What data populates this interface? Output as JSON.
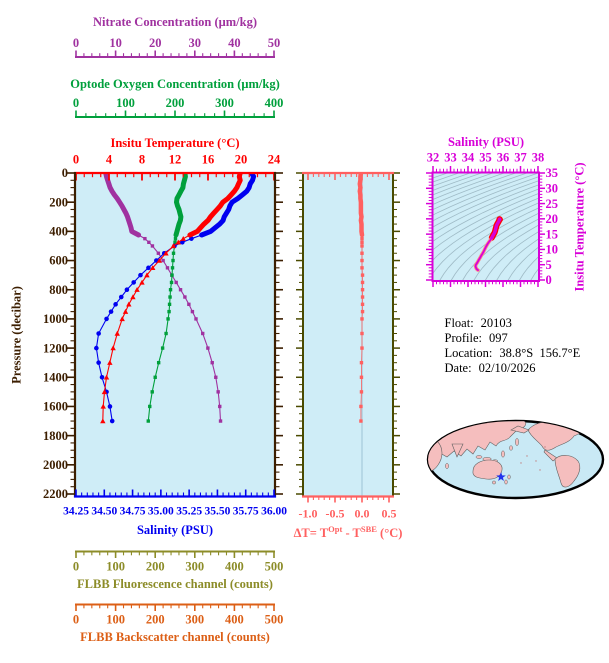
{
  "colors": {
    "nitrate": "#A032A0",
    "oxygen": "#00A03C",
    "temperature": "#FF0000",
    "salinity": "#0000F0",
    "pressure_axis": "#3C1E00",
    "fluorescence": "#8C8C28",
    "backscatter": "#DC5F16",
    "delta_t": "#FF6060",
    "mid_panel_axis": "#4A4A00",
    "ts_magenta": "#D800D8",
    "plot_background": "#CFEDF7",
    "zero_gridline": "#A5CBDC",
    "isopycnal_contour": "#8FAAB6",
    "map_ocean": "#C9E9F5",
    "map_land": "#F5BEBE",
    "map_outline": "#000000",
    "float_marker": "#2233EE"
  },
  "titles": {
    "nitrate": "Nitrate Concentration (μm/kg)",
    "oxygen": "Optode Oxygen Concentration (μm/kg)",
    "temperature": "Insitu Temperature (°C)",
    "pressure": "Pressure (decibar)",
    "salinity": "Salinity (PSU)",
    "fluorescence": "FLBB Fluorescence channel (counts)",
    "backscatter": "FLBB Backscatter channel (counts)",
    "ts_salinity": "Salinity (PSU)",
    "ts_temperature": "Insitu Temperature (°C)",
    "delta_t_parts": {
      "p1": "ΔT= T",
      "sup1": "Opt",
      "p2": " - T",
      "sup2": "SBE",
      "p3": " (°C)"
    }
  },
  "info": {
    "float_label": "Float:",
    "float_value": "20103",
    "profile_label": "Profile:",
    "profile_value": "097",
    "location_label": "Location:",
    "location_value": "38.8°S  156.7°E",
    "date_label": "Date:",
    "date_value": "02/10/2026"
  },
  "map": {
    "marker": {
      "symbol": "star",
      "color": "#2233EE",
      "latitude": "38.8°S",
      "longitude": "156.7°E"
    }
  },
  "chart_data": [
    {
      "type": "line",
      "title": "Float profile: temperature, salinity, oxygen, nitrate vs pressure",
      "y_axis": {
        "label": "Pressure (decibar)",
        "range": [
          0,
          2200
        ],
        "minor_step": 50,
        "major_ticks": [
          0,
          200,
          400,
          600,
          800,
          1000,
          1200,
          1400,
          1600,
          1800,
          2000,
          2200
        ],
        "tick_labels": [
          "0",
          "200",
          "400",
          "600",
          "800",
          "1000",
          "1200",
          "1400",
          "1600",
          "1800",
          "2000",
          "2200"
        ]
      },
      "x_axes": [
        {
          "id": "temperature",
          "label": "Insitu Temperature (°C)",
          "range": [
            0,
            24
          ],
          "minor_step": 1,
          "major_ticks": [
            0,
            4,
            8,
            12,
            16,
            20,
            24
          ],
          "tick_labels": [
            "0",
            "4",
            "8",
            "12",
            "16",
            "20",
            "24"
          ],
          "color": "#FF0000"
        },
        {
          "id": "salinity",
          "label": "Salinity (PSU)",
          "range": [
            34.25,
            36.0
          ],
          "minor_step": 0.05,
          "major_ticks": [
            34.25,
            34.5,
            34.75,
            35.0,
            35.25,
            35.5,
            35.75,
            36.0
          ],
          "tick_labels": [
            "34.25",
            "34.50",
            "34.75",
            "35.00",
            "35.25",
            "35.50",
            "35.75",
            "36.00"
          ],
          "color": "#0000F0"
        },
        {
          "id": "oxygen",
          "label": "Optode Oxygen Concentration (μm/kg)",
          "range": [
            0,
            400
          ],
          "minor_step": 20,
          "major_ticks": [
            0,
            100,
            200,
            300,
            400
          ],
          "tick_labels": [
            "0",
            "100",
            "200",
            "300",
            "400"
          ],
          "color": "#00A03C"
        },
        {
          "id": "nitrate",
          "label": "Nitrate Concentration (μm/kg)",
          "range": [
            0,
            50
          ],
          "minor_step": 2,
          "major_ticks": [
            0,
            10,
            20,
            30,
            40,
            50
          ],
          "tick_labels": [
            "0",
            "10",
            "20",
            "30",
            "40",
            "50"
          ],
          "color": "#A032A0"
        },
        {
          "id": "fluorescence",
          "label": "FLBB Fluorescence channel (counts)",
          "range": [
            0,
            500
          ],
          "minor_step": 20,
          "major_ticks": [
            0,
            100,
            200,
            300,
            400,
            500
          ],
          "tick_labels": [
            "0",
            "100",
            "200",
            "300",
            "400",
            "500"
          ],
          "color": "#8C8C28",
          "note": "axis shown, no curve plotted"
        },
        {
          "id": "backscatter",
          "label": "FLBB Backscatter channel (counts)",
          "range": [
            0,
            500
          ],
          "minor_step": 20,
          "major_ticks": [
            0,
            100,
            200,
            300,
            400,
            500
          ],
          "tick_labels": [
            "0",
            "100",
            "200",
            "300",
            "400",
            "500"
          ],
          "color": "#DC5F16",
          "note": "axis shown, no curve plotted"
        }
      ],
      "pressure": [
        0,
        25,
        50,
        75,
        100,
        125,
        150,
        175,
        200,
        225,
        250,
        275,
        300,
        325,
        350,
        375,
        400,
        425,
        450,
        475,
        500,
        550,
        600,
        650,
        700,
        750,
        800,
        850,
        900,
        950,
        1000,
        1100,
        1200,
        1300,
        1400,
        1500,
        1600,
        1700
      ],
      "thick_segment_max_pressure": 425,
      "series": [
        {
          "id": "nitrate",
          "axis": "nitrate",
          "color": "#A032A0",
          "marker": "square",
          "values": [
            7.5,
            7.7,
            8.0,
            8.3,
            8.6,
            9.1,
            9.7,
            10.4,
            11.0,
            11.6,
            12.1,
            12.6,
            13.0,
            13.3,
            13.6,
            13.9,
            14.1,
            15.8,
            17.4,
            18.4,
            19.3,
            20.8,
            22.0,
            23.1,
            24.2,
            25.3,
            26.4,
            27.5,
            28.5,
            29.4,
            30.3,
            32.0,
            33.3,
            34.4,
            35.3,
            35.9,
            36.3,
            36.5
          ]
        },
        {
          "id": "oxygen",
          "axis": "oxygen",
          "color": "#00A03C",
          "marker": "square",
          "values": [
            220,
            221,
            219,
            217,
            216,
            212,
            208,
            204,
            203,
            205,
            208,
            210,
            212,
            211,
            208,
            206,
            204,
            202,
            201,
            200,
            199,
            197,
            196,
            195,
            194,
            193,
            191,
            190,
            189,
            188,
            186,
            182,
            175,
            167,
            160,
            154,
            149,
            146
          ]
        },
        {
          "id": "salinity",
          "axis": "salinity",
          "color": "#0000F0",
          "marker": "circle",
          "values": [
            35.8,
            35.82,
            35.81,
            35.79,
            35.78,
            35.76,
            35.72,
            35.68,
            35.63,
            35.61,
            35.6,
            35.58,
            35.56,
            35.55,
            35.52,
            35.48,
            35.44,
            35.36,
            35.27,
            35.19,
            35.12,
            35.03,
            34.96,
            34.89,
            34.82,
            34.76,
            34.7,
            34.65,
            34.6,
            34.56,
            34.52,
            34.45,
            34.43,
            34.45,
            34.48,
            34.52,
            34.55,
            34.57
          ]
        },
        {
          "id": "temperature",
          "axis": "temperature",
          "color": "#FF0000",
          "marker": "triangle",
          "values": [
            19.9,
            19.8,
            19.9,
            19.7,
            19.5,
            19.2,
            18.8,
            18.4,
            17.8,
            17.5,
            17.1,
            16.7,
            16.3,
            16.0,
            15.5,
            15.1,
            14.7,
            13.8,
            13.0,
            12.4,
            11.8,
            10.9,
            10.1,
            9.3,
            8.6,
            8.0,
            7.4,
            6.9,
            6.4,
            6.0,
            5.6,
            5.0,
            4.5,
            4.1,
            3.7,
            3.45,
            3.3,
            3.25
          ]
        }
      ]
    },
    {
      "type": "line",
      "title": "Temperature difference optode minus SBE vs pressure",
      "x_axis": {
        "label": "ΔT= T^Opt - T^SBE (°C)",
        "range": [
          -1.09,
          0.57
        ],
        "minor_step": 0.1,
        "major_ticks": [
          -1.0,
          -0.5,
          0.0,
          0.5
        ],
        "tick_labels": [
          "-1.0",
          "-0.5",
          "0.0",
          "0.5"
        ],
        "color": "#FF6060"
      },
      "y_axis": {
        "label": "",
        "range": [
          0,
          2200
        ],
        "minor_step": 50,
        "major_step": 200,
        "color": "#4A4A00"
      },
      "zero_gridline": true,
      "values": [
        -0.02,
        -0.03,
        -0.03,
        -0.04,
        -0.03,
        -0.04,
        -0.03,
        -0.03,
        -0.02,
        -0.02,
        -0.02,
        -0.02,
        -0.01,
        -0.02,
        -0.01,
        -0.01,
        -0.01,
        0.0,
        0.0,
        0.0,
        0.0,
        0.0,
        0.0,
        0.0,
        0.01,
        0.01,
        0.01,
        0.01,
        0.01,
        0.01,
        0.0,
        0.0,
        0.0,
        -0.01,
        -0.01,
        -0.01,
        -0.02,
        -0.02
      ]
    },
    {
      "type": "scatter",
      "title": "T-S diagram with isopycnal contours",
      "x_axis": {
        "label": "Salinity (PSU)",
        "range": [
          32,
          38
        ],
        "minor_step": 0.2,
        "major_ticks": [
          32,
          33,
          34,
          35,
          36,
          37,
          38
        ],
        "tick_labels": [
          "32",
          "33",
          "34",
          "35",
          "36",
          "37",
          "38"
        ],
        "color": "#D800D8"
      },
      "y_axis": {
        "label": "Insitu Temperature (°C)",
        "range": [
          0,
          35
        ],
        "minor_step": 1,
        "major_ticks": [
          35,
          30,
          25,
          20,
          15,
          10,
          5,
          0
        ],
        "tick_labels": [
          "35",
          "30",
          "25",
          "20",
          "15",
          "10",
          "5",
          "0"
        ],
        "color": "#D800D8"
      },
      "curve": "salinity vs temperature pairs from main profile series",
      "isopycnals": {
        "sigma_start": 18,
        "sigma_end": 30.5,
        "sigma_step": 0.5
      }
    }
  ]
}
